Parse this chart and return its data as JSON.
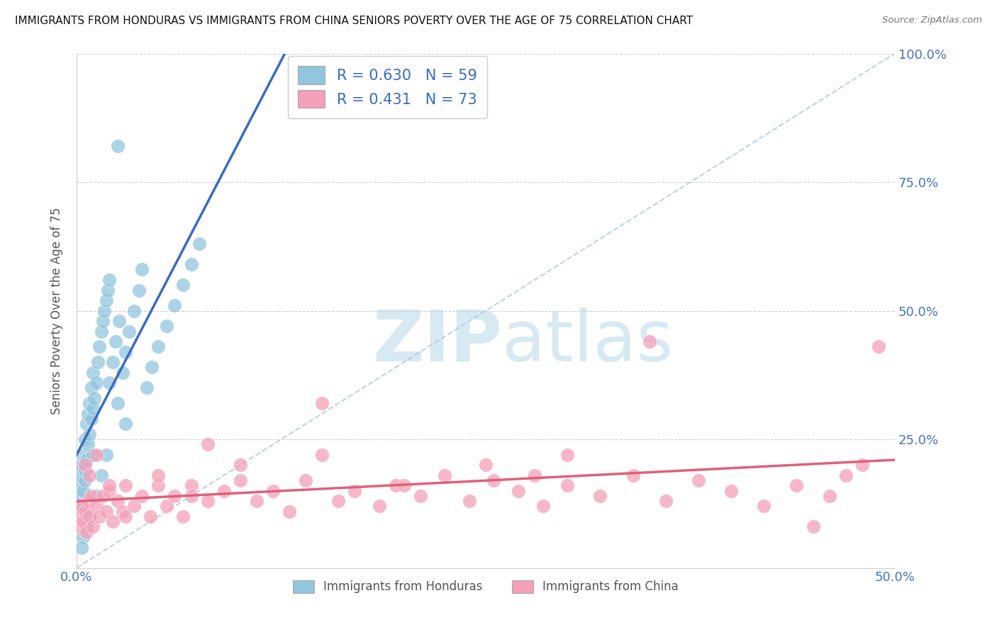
{
  "title": "IMMIGRANTS FROM HONDURAS VS IMMIGRANTS FROM CHINA SENIORS POVERTY OVER THE AGE OF 75 CORRELATION CHART",
  "source": "Source: ZipAtlas.com",
  "ylabel": "Seniors Poverty Over the Age of 75",
  "xlim": [
    0,
    0.5
  ],
  "ylim": [
    0,
    1.0
  ],
  "xtick_vals": [
    0.0,
    0.5
  ],
  "xtick_labels": [
    "0.0%",
    "50.0%"
  ],
  "ytick_vals": [
    0.0,
    0.25,
    0.5,
    0.75,
    1.0
  ],
  "right_ytick_labels": [
    "",
    "25.0%",
    "50.0%",
    "75.0%",
    "100.0%"
  ],
  "R_honduras": 0.63,
  "N_honduras": 59,
  "R_china": 0.431,
  "N_china": 73,
  "blue_color": "#92c5de",
  "pink_color": "#f4a0b8",
  "blue_line_color": "#3a6bbf",
  "pink_line_color": "#e0607a",
  "diag_color": "#b0c8d8",
  "watermark_color": "#cde4f0",
  "legend_label_1": "Immigrants from Honduras",
  "legend_label_2": "Immigrants from China",
  "honduras_x": [
    0.001,
    0.002,
    0.002,
    0.003,
    0.003,
    0.004,
    0.004,
    0.005,
    0.005,
    0.005,
    0.006,
    0.006,
    0.007,
    0.007,
    0.008,
    0.008,
    0.009,
    0.009,
    0.01,
    0.01,
    0.011,
    0.012,
    0.013,
    0.014,
    0.015,
    0.016,
    0.017,
    0.018,
    0.019,
    0.02,
    0.022,
    0.024,
    0.026,
    0.028,
    0.03,
    0.032,
    0.035,
    0.038,
    0.04,
    0.043,
    0.046,
    0.05,
    0.055,
    0.06,
    0.065,
    0.07,
    0.075,
    0.03,
    0.025,
    0.02,
    0.015,
    0.01,
    0.008,
    0.006,
    0.004,
    0.003,
    0.025,
    0.018,
    0.012
  ],
  "honduras_y": [
    0.14,
    0.16,
    0.18,
    0.12,
    0.2,
    0.15,
    0.22,
    0.17,
    0.19,
    0.25,
    0.21,
    0.28,
    0.24,
    0.3,
    0.26,
    0.32,
    0.29,
    0.35,
    0.31,
    0.38,
    0.33,
    0.36,
    0.4,
    0.43,
    0.46,
    0.48,
    0.5,
    0.52,
    0.54,
    0.56,
    0.4,
    0.44,
    0.48,
    0.38,
    0.42,
    0.46,
    0.5,
    0.54,
    0.58,
    0.35,
    0.39,
    0.43,
    0.47,
    0.51,
    0.55,
    0.59,
    0.63,
    0.28,
    0.32,
    0.36,
    0.18,
    0.22,
    0.1,
    0.08,
    0.06,
    0.04,
    0.82,
    0.22,
    0.14
  ],
  "china_x": [
    0.001,
    0.002,
    0.003,
    0.004,
    0.005,
    0.006,
    0.007,
    0.008,
    0.009,
    0.01,
    0.012,
    0.014,
    0.016,
    0.018,
    0.02,
    0.022,
    0.025,
    0.028,
    0.03,
    0.035,
    0.04,
    0.045,
    0.05,
    0.055,
    0.06,
    0.065,
    0.07,
    0.08,
    0.09,
    0.1,
    0.11,
    0.12,
    0.13,
    0.14,
    0.16,
    0.17,
    0.185,
    0.195,
    0.21,
    0.225,
    0.24,
    0.255,
    0.27,
    0.285,
    0.3,
    0.32,
    0.34,
    0.36,
    0.38,
    0.4,
    0.42,
    0.44,
    0.46,
    0.47,
    0.48,
    0.005,
    0.008,
    0.012,
    0.02,
    0.03,
    0.05,
    0.07,
    0.1,
    0.15,
    0.2,
    0.28,
    0.35,
    0.15,
    0.08,
    0.25,
    0.3,
    0.45,
    0.49
  ],
  "china_y": [
    0.1,
    0.08,
    0.12,
    0.09,
    0.11,
    0.07,
    0.13,
    0.1,
    0.14,
    0.08,
    0.12,
    0.1,
    0.14,
    0.11,
    0.15,
    0.09,
    0.13,
    0.11,
    0.16,
    0.12,
    0.14,
    0.1,
    0.16,
    0.12,
    0.14,
    0.1,
    0.16,
    0.13,
    0.15,
    0.17,
    0.13,
    0.15,
    0.11,
    0.17,
    0.13,
    0.15,
    0.12,
    0.16,
    0.14,
    0.18,
    0.13,
    0.17,
    0.15,
    0.12,
    0.16,
    0.14,
    0.18,
    0.13,
    0.17,
    0.15,
    0.12,
    0.16,
    0.14,
    0.18,
    0.2,
    0.2,
    0.18,
    0.22,
    0.16,
    0.1,
    0.18,
    0.14,
    0.2,
    0.22,
    0.16,
    0.18,
    0.44,
    0.32,
    0.24,
    0.2,
    0.22,
    0.08,
    0.43
  ]
}
